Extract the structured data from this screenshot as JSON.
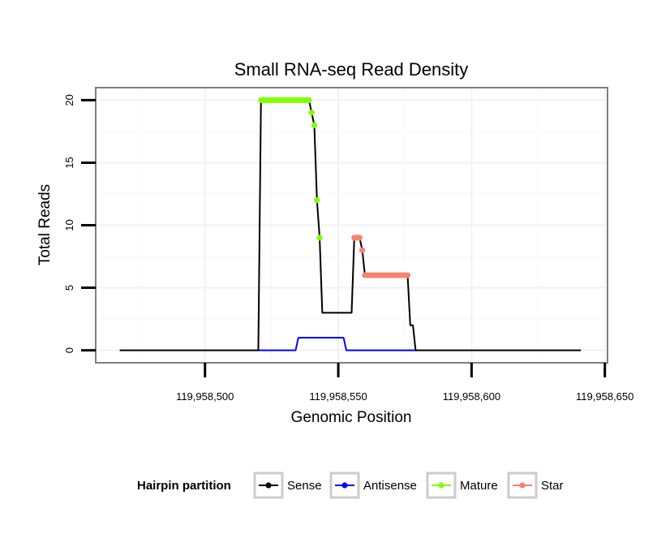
{
  "chart_data": {
    "type": "line",
    "title": "Small RNA-seq Read Density",
    "xlabel": "Genomic Position",
    "ylabel": "Total Reads",
    "xlim": [
      119958459,
      119958651
    ],
    "ylim": [
      -1,
      21
    ],
    "x_ticks": [
      {
        "value": 119958500,
        "label": "119,958,500"
      },
      {
        "value": 119958550,
        "label": "119,958,550"
      },
      {
        "value": 119958600,
        "label": "119,958,600"
      },
      {
        "value": 119958650,
        "label": "119,958,650"
      }
    ],
    "y_ticks": [
      {
        "value": 0,
        "label": "0"
      },
      {
        "value": 5,
        "label": "5"
      },
      {
        "value": 10,
        "label": "10"
      },
      {
        "value": 15,
        "label": "15"
      },
      {
        "value": 20,
        "label": "20"
      }
    ],
    "grid": true,
    "legend": {
      "title": "Hairpin partition",
      "position": "bottom",
      "entries": [
        {
          "label": "Sense",
          "color": "#000000"
        },
        {
          "label": "Antisense",
          "color": "#0000ff"
        },
        {
          "label": "Mature",
          "color": "#7fff00"
        },
        {
          "label": "Star",
          "color": "#fa8072"
        }
      ]
    },
    "series": [
      {
        "name": "Sense",
        "color": "#000000",
        "kind": "line",
        "points": [
          [
            119958468,
            0
          ],
          [
            119958520,
            0
          ],
          [
            119958521,
            20
          ],
          [
            119958539,
            20
          ],
          [
            119958540,
            19
          ],
          [
            119958541,
            18
          ],
          [
            119958542,
            12
          ],
          [
            119958543,
            9
          ],
          [
            119958544,
            3
          ],
          [
            119958555,
            3
          ],
          [
            119958556,
            9
          ],
          [
            119958558,
            9
          ],
          [
            119958559,
            8
          ],
          [
            119958560,
            6
          ],
          [
            119958576,
            6
          ],
          [
            119958577,
            2
          ],
          [
            119958578,
            2
          ],
          [
            119958579,
            0
          ],
          [
            119958641,
            0
          ]
        ]
      },
      {
        "name": "Antisense",
        "color": "#0000ff",
        "kind": "line",
        "points": [
          [
            119958520,
            0
          ],
          [
            119958534,
            0
          ],
          [
            119958535,
            1
          ],
          [
            119958552,
            1
          ],
          [
            119958553,
            0
          ],
          [
            119958579,
            0
          ]
        ]
      },
      {
        "name": "Mature",
        "color": "#7fff00",
        "kind": "points",
        "points": [
          [
            119958521,
            20
          ],
          [
            119958522,
            20
          ],
          [
            119958523,
            20
          ],
          [
            119958524,
            20
          ],
          [
            119958525,
            20
          ],
          [
            119958526,
            20
          ],
          [
            119958527,
            20
          ],
          [
            119958528,
            20
          ],
          [
            119958529,
            20
          ],
          [
            119958530,
            20
          ],
          [
            119958531,
            20
          ],
          [
            119958532,
            20
          ],
          [
            119958533,
            20
          ],
          [
            119958534,
            20
          ],
          [
            119958535,
            20
          ],
          [
            119958536,
            20
          ],
          [
            119958537,
            20
          ],
          [
            119958538,
            20
          ],
          [
            119958539,
            20
          ],
          [
            119958540,
            19
          ],
          [
            119958541,
            18
          ],
          [
            119958542,
            12
          ],
          [
            119958543,
            9
          ]
        ]
      },
      {
        "name": "Star",
        "color": "#fa8072",
        "kind": "points",
        "points": [
          [
            119958556,
            9
          ],
          [
            119958557,
            9
          ],
          [
            119958558,
            9
          ],
          [
            119958559,
            8
          ],
          [
            119958560,
            6
          ],
          [
            119958561,
            6
          ],
          [
            119958562,
            6
          ],
          [
            119958563,
            6
          ],
          [
            119958564,
            6
          ],
          [
            119958565,
            6
          ],
          [
            119958566,
            6
          ],
          [
            119958567,
            6
          ],
          [
            119958568,
            6
          ],
          [
            119958569,
            6
          ],
          [
            119958570,
            6
          ],
          [
            119958571,
            6
          ],
          [
            119958572,
            6
          ],
          [
            119958573,
            6
          ],
          [
            119958574,
            6
          ],
          [
            119958575,
            6
          ],
          [
            119958576,
            6
          ]
        ]
      }
    ]
  }
}
